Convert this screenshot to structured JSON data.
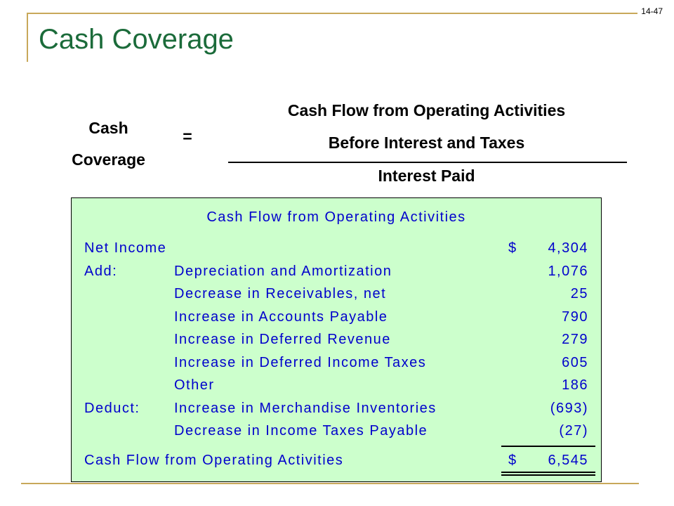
{
  "slide_number": "14-47",
  "title": "Cash Coverage",
  "formula": {
    "label_line1": "Cash",
    "label_line2": "Coverage",
    "equals": "=",
    "numerator_line1": "Cash Flow from Operating Activities",
    "numerator_line2": "Before Interest and Taxes",
    "denominator": "Interest Paid"
  },
  "statement": {
    "title": "Cash Flow from Operating Activities",
    "rows": [
      {
        "category": "Net Income",
        "description": "",
        "dollar": "$",
        "amount": "4,304"
      },
      {
        "category": "Add:",
        "description": "Depreciation and Amortization",
        "dollar": "",
        "amount": "1,076"
      },
      {
        "category": "",
        "description": "Decrease in Receivables, net",
        "dollar": "",
        "amount": "25"
      },
      {
        "category": "",
        "description": "Increase in Accounts Payable",
        "dollar": "",
        "amount": "790"
      },
      {
        "category": "",
        "description": "Increase in Deferred Revenue",
        "dollar": "",
        "amount": "279"
      },
      {
        "category": "",
        "description": "Increase in Deferred Income Taxes",
        "dollar": "",
        "amount": "605"
      },
      {
        "category": "",
        "description": "Other",
        "dollar": "",
        "amount": "186"
      },
      {
        "category": "Deduct:",
        "description": "Increase in Merchandise Inventories",
        "dollar": "",
        "amount": "(693)"
      },
      {
        "category": "",
        "description": "Decrease in Income Taxes Payable",
        "dollar": "",
        "amount": "(27)"
      }
    ],
    "total": {
      "label": "Cash Flow from Operating Activities",
      "dollar": "$",
      "amount": "6,545"
    }
  },
  "colors": {
    "title": "#1b6b3a",
    "frame": "#c8a85a",
    "table_background": "#ccffcc",
    "table_text": "#0000cc"
  }
}
